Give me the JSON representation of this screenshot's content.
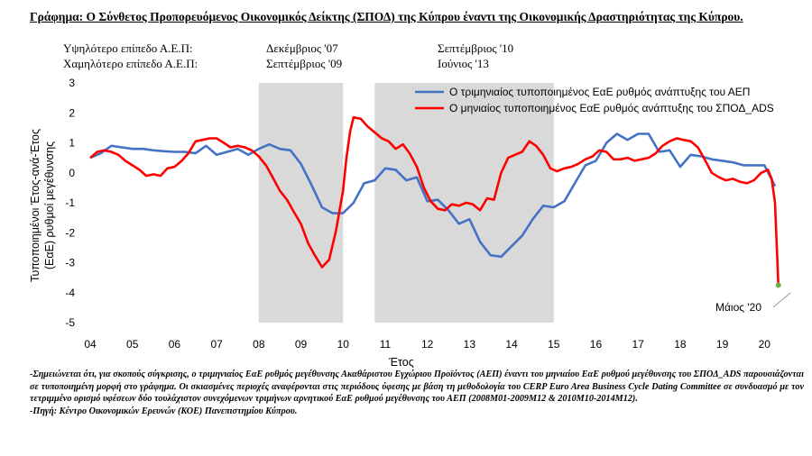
{
  "title": "Γράφημα: Ο Σύνθετος Προπορευόμενος Οικονομικός Δείκτης (ΣΠΟΔ) της Κύπρου έναντι της Οικονομικής Δραστηριότητας της Κύπρου.",
  "peaks": {
    "high_label": "Υψηλότερο επίπεδο Α.Ε.Π:",
    "high_1": "Δεκέμβριος '07",
    "high_2": "Σεπτέμβριος '10",
    "low_label": "Χαμηλότερο επίπεδο Α.Ε.Π:",
    "low_1": "Σεπτέμβριος '09",
    "low_2": "Ιούνιος '13"
  },
  "notes": {
    "note_1": "-Σημειώνεται ότι, για σκοπούς σύγκρισης, ο τριμηνιαίος ΕαΕ ρυθμός μεγέθυνσης Ακαθάριστου Εγχώριου Προϊόντος (ΑΕΠ) έναντι του μηνιαίου ΕαΕ ρυθμού μεγέθυνσης του ΣΠΟΔ_ADS παρουσιάζονται σε τυποποιημένη μορφή στο γράφημα. Οι σκιασμένες περιοχές αναφέρονται στις περιόδους ύφεσης με βάση τη μεθοδολογία του CERP Euro Area Business Cycle Dating Committee σε συνδυασμό με τον τετριμμένο ορισμό υφέσεων δύο τουλάχιστον συνεχόμενων τριμήνων αρνητικού ΕαΕ ρυθμού μεγέθυνσης του ΑΕΠ (2008M01-2009M12 & 2010M10-2014M12).",
    "note_2": "-Πηγή: Κέντρο Οικονομικών Ερευνών (ΚΟΕ) Πανεπιστημίου Κύπρου."
  },
  "chart_data": {
    "type": "line",
    "xlabel": "Έτος",
    "ylabel": "Τυποποιημένοι Έτος-ανά-Έτος (ΕαΕ) ρυθμοί μεγέθυνσης",
    "ylim": [
      -5,
      3
    ],
    "xlim": [
      2004,
      2020.6
    ],
    "x_tick_labels": [
      "04",
      "05",
      "06",
      "07",
      "08",
      "09",
      "10",
      "11",
      "12",
      "13",
      "14",
      "15",
      "16",
      "17",
      "18",
      "19",
      "20"
    ],
    "y_ticks": [
      3,
      2,
      1,
      0,
      -1,
      -2,
      -3,
      -4,
      -5
    ],
    "legend_position": "top-right",
    "grid": false,
    "shaded_periods": [
      [
        2008.0,
        2010.0
      ],
      [
        2010.75,
        2015.0
      ]
    ],
    "annotation": {
      "text": "Μάιος '20",
      "x": 2020.33,
      "y": -3.8
    },
    "series": [
      {
        "name": "Ο τριμηνιαίος τυποποιημένος ΕαΕ ρυθμός ανάπτυξης του ΑΕΠ",
        "color": "#4472C4",
        "x": [
          2004.0,
          2004.25,
          2004.5,
          2004.75,
          2005.0,
          2005.25,
          2005.5,
          2005.75,
          2006.0,
          2006.25,
          2006.5,
          2006.75,
          2007.0,
          2007.25,
          2007.5,
          2007.75,
          2008.0,
          2008.25,
          2008.5,
          2008.75,
          2009.0,
          2009.25,
          2009.5,
          2009.75,
          2010.0,
          2010.25,
          2010.5,
          2010.75,
          2011.0,
          2011.25,
          2011.5,
          2011.75,
          2012.0,
          2012.25,
          2012.5,
          2012.75,
          2013.0,
          2013.25,
          2013.5,
          2013.75,
          2014.0,
          2014.25,
          2014.5,
          2014.75,
          2015.0,
          2015.25,
          2015.5,
          2015.75,
          2016.0,
          2016.25,
          2016.5,
          2016.75,
          2017.0,
          2017.25,
          2017.5,
          2017.75,
          2018.0,
          2018.25,
          2018.5,
          2018.75,
          2019.0,
          2019.25,
          2019.5,
          2019.75,
          2020.0,
          2020.25
        ],
        "values": [
          0.5,
          0.65,
          0.9,
          0.85,
          0.8,
          0.8,
          0.75,
          0.72,
          0.7,
          0.7,
          0.65,
          0.9,
          0.6,
          0.7,
          0.8,
          0.6,
          0.8,
          0.95,
          0.8,
          0.75,
          0.3,
          -0.4,
          -1.15,
          -1.35,
          -1.35,
          -1.0,
          -0.35,
          -0.25,
          0.15,
          0.1,
          -0.25,
          -0.15,
          -0.95,
          -0.9,
          -1.25,
          -1.7,
          -1.55,
          -2.3,
          -2.75,
          -2.8,
          -2.45,
          -2.1,
          -1.55,
          -1.1,
          -1.15,
          -0.95,
          -0.35,
          0.25,
          0.4,
          1.0,
          1.3,
          1.1,
          1.3,
          1.3,
          0.7,
          0.75,
          0.2,
          0.6,
          0.55,
          0.45,
          0.4,
          0.35,
          0.25,
          0.25,
          0.25,
          -0.45
        ]
      },
      {
        "name": "Ο μηνιαίος τυποποιημένος ΕαΕ ρυθμός ανάπτυξης του ΣΠΟΔ_ADS",
        "color": "#FF0000",
        "x": [
          2004.0,
          2004.17,
          2004.33,
          2004.5,
          2004.67,
          2004.83,
          2005.0,
          2005.17,
          2005.33,
          2005.5,
          2005.67,
          2005.83,
          2006.0,
          2006.17,
          2006.33,
          2006.5,
          2006.67,
          2006.83,
          2007.0,
          2007.17,
          2007.33,
          2007.5,
          2007.67,
          2007.83,
          2008.0,
          2008.17,
          2008.33,
          2008.5,
          2008.67,
          2008.83,
          2009.0,
          2009.17,
          2009.33,
          2009.5,
          2009.67,
          2009.83,
          2010.0,
          2010.08,
          2010.17,
          2010.25,
          2010.42,
          2010.58,
          2010.75,
          2010.92,
          2011.08,
          2011.25,
          2011.42,
          2011.58,
          2011.75,
          2011.92,
          2012.08,
          2012.25,
          2012.42,
          2012.58,
          2012.75,
          2012.92,
          2013.08,
          2013.25,
          2013.42,
          2013.58,
          2013.75,
          2013.92,
          2014.08,
          2014.25,
          2014.42,
          2014.58,
          2014.75,
          2014.92,
          2015.08,
          2015.25,
          2015.42,
          2015.58,
          2015.75,
          2015.92,
          2016.08,
          2016.25,
          2016.42,
          2016.58,
          2016.75,
          2016.92,
          2017.08,
          2017.25,
          2017.42,
          2017.58,
          2017.75,
          2017.92,
          2018.08,
          2018.25,
          2018.42,
          2018.58,
          2018.75,
          2018.92,
          2019.08,
          2019.25,
          2019.42,
          2019.58,
          2019.75,
          2019.92,
          2020.08,
          2020.17,
          2020.25,
          2020.33
        ],
        "values": [
          0.5,
          0.7,
          0.75,
          0.7,
          0.6,
          0.4,
          0.25,
          0.1,
          -0.1,
          -0.05,
          -0.1,
          0.15,
          0.2,
          0.4,
          0.65,
          1.05,
          1.1,
          1.15,
          1.15,
          1.0,
          0.85,
          0.9,
          0.85,
          0.75,
          0.55,
          0.25,
          -0.15,
          -0.6,
          -0.9,
          -1.3,
          -1.7,
          -2.35,
          -2.75,
          -3.15,
          -2.9,
          -1.95,
          -0.6,
          0.5,
          1.4,
          1.85,
          1.8,
          1.55,
          1.35,
          1.15,
          1.05,
          0.8,
          0.95,
          0.65,
          0.2,
          -0.5,
          -0.95,
          -1.2,
          -1.25,
          -1.05,
          -1.1,
          -1.0,
          -1.05,
          -1.25,
          -0.85,
          -0.9,
          0.0,
          0.5,
          0.6,
          0.7,
          1.05,
          0.9,
          0.6,
          0.15,
          0.05,
          0.15,
          0.2,
          0.3,
          0.45,
          0.55,
          0.75,
          0.7,
          0.45,
          0.45,
          0.5,
          0.4,
          0.45,
          0.5,
          0.65,
          0.9,
          1.05,
          1.15,
          1.1,
          1.05,
          0.85,
          0.45,
          0.0,
          -0.15,
          -0.25,
          -0.2,
          -0.3,
          -0.35,
          -0.25,
          0.0,
          0.1,
          -0.2,
          -1.0,
          -3.75
        ]
      }
    ]
  }
}
